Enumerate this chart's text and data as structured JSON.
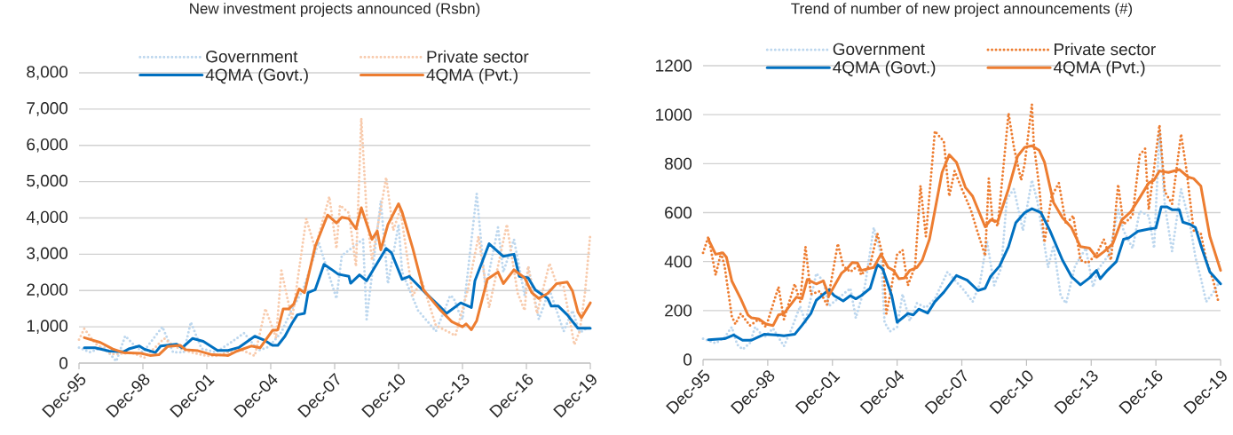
{
  "chart_data": [
    {
      "type": "line",
      "title": "New investment projects announced (Rsbn)",
      "xlim": [
        "1995-12",
        "2019-12"
      ],
      "xticks": [
        {
          "value": "1995-12",
          "label": "Dec-95"
        },
        {
          "value": "1998-12",
          "label": "Dec-98"
        },
        {
          "value": "2001-12",
          "label": "Dec-01"
        },
        {
          "value": "2004-12",
          "label": "Dec-04"
        },
        {
          "value": "2007-12",
          "label": "Dec-07"
        },
        {
          "value": "2010-12",
          "label": "Dec-10"
        },
        {
          "value": "2013-12",
          "label": "Dec-13"
        },
        {
          "value": "2016-12",
          "label": "Dec-16"
        },
        {
          "value": "2019-12",
          "label": "Dec-19"
        }
      ],
      "ylim": [
        0,
        8000
      ],
      "yticks": [
        0,
        {
          "value": 1000,
          "label": "1,000"
        },
        {
          "value": 2000,
          "label": "2,000"
        },
        {
          "value": 3000,
          "label": "3,000"
        },
        {
          "value": 4000,
          "label": "4,000"
        },
        {
          "value": 5000,
          "label": "5,000"
        },
        {
          "value": 6000,
          "label": "6,000"
        },
        {
          "value": 7000,
          "label": "7,000"
        },
        {
          "value": 8000,
          "label": "8,000"
        }
      ],
      "grid": "y",
      "legend": "top",
      "series": [
        {
          "name": "Government",
          "color": "#bdd7ee",
          "line_style": "dotted",
          "x": [
            "1995-12",
            "1996-06",
            "1997-02",
            "1997-09",
            "1998-02",
            "1998-07",
            "1998-12",
            "1999-11",
            "2000-05",
            "2000-11",
            "2001-03",
            "2001-09",
            "2002-05",
            "2003-01",
            "2003-09",
            "2004-05",
            "2004-11",
            "2005-06",
            "2005-12",
            "2006-06",
            "2007-03",
            "2008-01",
            "2008-04",
            "2009-04",
            "2009-06",
            "2010-02",
            "2010-06",
            "2010-12",
            "2011-02",
            "2011-11",
            "2012-09",
            "2013-03",
            "2013-05",
            "2013-07",
            "2013-10",
            "2013-12",
            "2014-08",
            "2015-01",
            "2015-08",
            "2015-11",
            "2016-05",
            "2016-11",
            "2017-01",
            "2017-07",
            "2018-01",
            "2018-09",
            "2019-02",
            "2019-06",
            "2019-10"
          ],
          "values": [
            430,
            300,
            450,
            50,
            750,
            500,
            300,
            1000,
            300,
            300,
            1130,
            400,
            300,
            550,
            830,
            350,
            450,
            850,
            1500,
            2000,
            3330,
            1780,
            2960,
            3410,
            1210,
            4470,
            2190,
            3820,
            2510,
            1450,
            880,
            1600,
            1860,
            1800,
            1400,
            1210,
            4670,
            2020,
            3740,
            2510,
            3410,
            1860,
            2670,
            1210,
            2020,
            880,
            1450,
            840,
            960
          ]
        },
        {
          "name": "Private sector",
          "color": "#f8cbad",
          "line_style": "dotted",
          "x": [
            "1995-12",
            "1996-03",
            "1996-09",
            "1997-06",
            "1998-06",
            "1999-01",
            "1999-12",
            "2000-06",
            "2001-03",
            "2001-12",
            "2002-06",
            "2003-06",
            "2004-03",
            "2004-09",
            "2005-03",
            "2005-06",
            "2005-12",
            "2006-03",
            "2006-08",
            "2007-01",
            "2007-09",
            "2008-01",
            "2008-03",
            "2008-08",
            "2008-12",
            "2009-03",
            "2009-06",
            "2009-09",
            "2010-05",
            "2010-09",
            "2011-01",
            "2011-08",
            "2012-01",
            "2012-09",
            "2013-08",
            "2014-03",
            "2014-09",
            "2015-03",
            "2016-01",
            "2016-07",
            "2016-11",
            "2017-01",
            "2017-06",
            "2018-01",
            "2018-05",
            "2018-09",
            "2019-03",
            "2019-06",
            "2019-09",
            "2019-12"
          ],
          "values": [
            650,
            950,
            550,
            250,
            280,
            150,
            680,
            450,
            300,
            200,
            200,
            400,
            200,
            1500,
            700,
            2550,
            1200,
            2250,
            3980,
            3160,
            4590,
            3160,
            4350,
            4140,
            2670,
            6750,
            4140,
            2840,
            5120,
            3660,
            4240,
            1860,
            2270,
            1040,
            760,
            2020,
            3490,
            1530,
            3820,
            1940,
            1450,
            2670,
            1370,
            2750,
            2190,
            2100,
            510,
            880,
            1940,
            3570
          ]
        },
        {
          "name": "4QMA (Govt.)",
          "color": "#0070c0",
          "line_style": "solid",
          "x": [
            "1996-03",
            "1996-09",
            "1997-05",
            "1998-01",
            "1998-04",
            "1998-10",
            "1999-01",
            "1999-07",
            "1999-10",
            "2000-07",
            "2000-10",
            "2001-04",
            "2001-10",
            "2002-06",
            "2002-12",
            "2003-06",
            "2004-03",
            "2004-08",
            "2005-01",
            "2005-04",
            "2005-08",
            "2005-12",
            "2006-03",
            "2006-07",
            "2006-09",
            "2007-01",
            "2007-06",
            "2007-10",
            "2008-02",
            "2008-08",
            "2008-09",
            "2009-02",
            "2009-06",
            "2010-05",
            "2010-08",
            "2011-02",
            "2011-06",
            "2012-03",
            "2012-11",
            "2013-03",
            "2013-11",
            "2014-05",
            "2014-07",
            "2015-03",
            "2015-11",
            "2016-05",
            "2016-08",
            "2017-01",
            "2017-05",
            "2017-12",
            "2018-02",
            "2018-06",
            "2018-11",
            "2019-05",
            "2019-12"
          ],
          "values": [
            420,
            420,
            330,
            310,
            390,
            470,
            380,
            290,
            470,
            520,
            420,
            680,
            600,
            350,
            350,
            430,
            740,
            640,
            490,
            490,
            740,
            1100,
            1330,
            1370,
            1940,
            2020,
            2720,
            2590,
            2450,
            2390,
            2200,
            2430,
            2270,
            3160,
            3040,
            2310,
            2390,
            1940,
            1570,
            1370,
            1660,
            1530,
            2270,
            3290,
            2940,
            3000,
            2390,
            2350,
            2020,
            1780,
            1570,
            1570,
            1330,
            960,
            960
          ]
        },
        {
          "name": "4QMA (Pvt.)",
          "color": "#ed7d31",
          "line_style": "solid",
          "x": [
            "1996-03",
            "1996-12",
            "1997-07",
            "1998-01",
            "1998-11",
            "1999-04",
            "1999-09",
            "2000-02",
            "2000-09",
            "2000-12",
            "2001-07",
            "2002-03",
            "2002-12",
            "2003-05",
            "2004-01",
            "2004-06",
            "2005-01",
            "2005-04",
            "2005-07",
            "2005-10",
            "2006-01",
            "2006-04",
            "2006-07",
            "2007-01",
            "2007-08",
            "2008-01",
            "2008-04",
            "2008-08",
            "2008-12",
            "2009-03",
            "2009-09",
            "2009-12",
            "2010-02",
            "2010-06",
            "2010-12",
            "2011-02",
            "2011-08",
            "2012-02",
            "2012-11",
            "2013-06",
            "2013-12",
            "2014-02",
            "2014-05",
            "2014-08",
            "2015-02",
            "2015-08",
            "2015-11",
            "2016-05",
            "2016-11",
            "2017-03",
            "2017-07",
            "2017-12",
            "2018-05",
            "2018-11",
            "2019-02",
            "2019-05",
            "2019-07",
            "2019-12"
          ],
          "values": [
            700,
            570,
            390,
            290,
            270,
            210,
            230,
            460,
            490,
            370,
            340,
            230,
            210,
            330,
            470,
            420,
            900,
            920,
            1490,
            1490,
            1630,
            2040,
            1940,
            3210,
            4080,
            3860,
            4020,
            3980,
            3700,
            4280,
            3410,
            3640,
            3120,
            3820,
            4390,
            4160,
            3160,
            2020,
            1490,
            1140,
            1000,
            1080,
            920,
            1170,
            2310,
            2510,
            2190,
            2570,
            2350,
            1940,
            1780,
            1920,
            2190,
            2230,
            1980,
            1410,
            1250,
            1660
          ]
        }
      ]
    },
    {
      "type": "line",
      "title": "Trend of number of new project announcements (#)",
      "xlim": [
        "1995-12",
        "2019-12"
      ],
      "xticks": [
        {
          "value": "1995-12",
          "label": "Dec-95"
        },
        {
          "value": "1998-12",
          "label": "Dec-98"
        },
        {
          "value": "2001-12",
          "label": "Dec-01"
        },
        {
          "value": "2004-12",
          "label": "Dec-04"
        },
        {
          "value": "2007-12",
          "label": "Dec-07"
        },
        {
          "value": "2010-12",
          "label": "Dec-10"
        },
        {
          "value": "2013-12",
          "label": "Dec-13"
        },
        {
          "value": "2016-12",
          "label": "Dec-16"
        },
        {
          "value": "2019-12",
          "label": "Dec-19"
        }
      ],
      "ylim": [
        0,
        1200
      ],
      "yticks": [
        0,
        200,
        400,
        600,
        800,
        1000,
        1200
      ],
      "grid": "y",
      "legend": "top",
      "series": [
        {
          "name": "Government",
          "color": "#bdd7ee",
          "line_style": "dotted",
          "x": [
            "1995-12",
            "1996-07",
            "1996-12",
            "1997-04",
            "1997-07",
            "1997-10",
            "1998-02",
            "1998-05",
            "1998-10",
            "1999-03",
            "1999-06",
            "1999-09",
            "2000-01",
            "2000-06",
            "2000-09",
            "2001-03",
            "2001-07",
            "2001-10",
            "2002-05",
            "2002-10",
            "2003-01",
            "2003-06",
            "2003-11",
            "2004-03",
            "2004-05",
            "2004-08",
            "2004-12",
            "2005-03",
            "2005-07",
            "2005-11",
            "2006-04",
            "2006-09",
            "2007-04",
            "2007-10",
            "2008-01",
            "2008-06",
            "2008-10",
            "2009-02",
            "2009-06",
            "2009-10",
            "2010-01",
            "2010-05",
            "2010-10",
            "2011-03",
            "2011-06",
            "2011-12",
            "2012-03",
            "2012-07",
            "2012-10",
            "2013-03",
            "2013-09",
            "2014-01",
            "2014-04",
            "2014-10",
            "2015-03",
            "2015-06",
            "2015-11",
            "2016-03",
            "2016-08",
            "2016-11",
            "2017-02",
            "2017-05",
            "2017-09",
            "2018-02",
            "2018-07",
            "2018-10",
            "2019-01",
            "2019-04",
            "2019-09",
            "2019-11"
          ],
          "values": [
            85,
            67,
            91,
            133,
            61,
            42,
            67,
            133,
            91,
            127,
            91,
            55,
            121,
            218,
            152,
            352,
            321,
            218,
            261,
            291,
            170,
            297,
            539,
            430,
            152,
            115,
            133,
            267,
            158,
            230,
            212,
            248,
            358,
            309,
            285,
            236,
            309,
            485,
            303,
            376,
            655,
            697,
            527,
            733,
            648,
            376,
            467,
            261,
            230,
            382,
            455,
            297,
            370,
            430,
            612,
            527,
            455,
            606,
            588,
            455,
            933,
            630,
            442,
            697,
            552,
            418,
            333,
            236,
            285,
            315
          ]
        },
        {
          "name": "Private sector",
          "color": "#ed7d31",
          "line_style": "dotted",
          "x": [
            "1995-12",
            "1996-03",
            "1996-07",
            "1996-10",
            "1996-12",
            "1997-04",
            "1997-06",
            "1997-09",
            "1998-02",
            "1998-07",
            "1998-11",
            "1999-06",
            "1999-09",
            "2000-03",
            "2000-06",
            "2000-09",
            "2000-12",
            "2001-05",
            "2001-09",
            "2002-03",
            "2002-06",
            "2002-10",
            "2003-02",
            "2003-04",
            "2003-09",
            "2004-01",
            "2004-04",
            "2004-06",
            "2004-08",
            "2004-12",
            "2005-03",
            "2005-06",
            "2005-10",
            "2006-01",
            "2006-04",
            "2006-09",
            "2007-02",
            "2007-05",
            "2007-08",
            "2007-12",
            "2008-05",
            "2008-08",
            "2009-01",
            "2009-03",
            "2009-05",
            "2009-08",
            "2010-02",
            "2010-05",
            "2010-09",
            "2010-11",
            "2011-03",
            "2011-04",
            "2011-07",
            "2011-10",
            "2012-02",
            "2012-06",
            "2012-10",
            "2013-02",
            "2013-06",
            "2013-10",
            "2014-03",
            "2014-07",
            "2014-11",
            "2015-03",
            "2015-06",
            "2015-11",
            "2016-03",
            "2016-06",
            "2016-08",
            "2016-11",
            "2017-02",
            "2017-05",
            "2017-09",
            "2018-02",
            "2018-05",
            "2018-09",
            "2019-01",
            "2019-04",
            "2019-08",
            "2019-11"
          ],
          "values": [
            436,
            503,
            345,
            436,
            382,
            176,
            145,
            188,
            139,
            164,
            133,
            297,
            164,
            309,
            236,
            461,
            267,
            279,
            224,
            473,
            382,
            358,
            382,
            345,
            388,
            515,
            424,
            188,
            261,
            430,
            448,
            303,
            382,
            710,
            503,
            933,
            891,
            667,
            770,
            697,
            612,
            539,
            424,
            739,
            576,
            545,
            1006,
            867,
            733,
            800,
            1042,
            885,
            709,
            479,
            667,
            721,
            552,
            588,
            406,
            394,
            430,
            491,
            406,
            715,
            552,
            588,
            836,
            861,
            612,
            782,
            958,
            685,
            636,
            921,
            776,
            527,
            515,
            406,
            321,
            230
          ]
        },
        {
          "name": "4QMA (Govt.)",
          "color": "#0070c0",
          "line_style": "solid",
          "x": [
            "1996-03",
            "1996-12",
            "1997-05",
            "1997-10",
            "1998-03",
            "1998-10",
            "1999-06",
            "1999-09",
            "2000-03",
            "2000-07",
            "2000-12",
            "2001-03",
            "2001-10",
            "2002-01",
            "2002-06",
            "2002-10",
            "2003-01",
            "2003-04",
            "2003-09",
            "2004-01",
            "2004-04",
            "2004-09",
            "2004-12",
            "2005-06",
            "2005-09",
            "2005-12",
            "2006-05",
            "2006-09",
            "2007-02",
            "2007-09",
            "2008-03",
            "2008-09",
            "2009-01",
            "2009-04",
            "2009-09",
            "2010-02",
            "2010-06",
            "2010-11",
            "2011-03",
            "2011-08",
            "2012-01",
            "2012-08",
            "2013-01",
            "2013-06",
            "2013-11",
            "2014-03",
            "2014-05",
            "2014-09",
            "2015-02",
            "2015-06",
            "2015-09",
            "2016-02",
            "2016-08",
            "2016-12",
            "2017-03",
            "2017-06",
            "2017-09",
            "2018-01",
            "2018-03",
            "2018-07",
            "2018-10",
            "2019-01",
            "2019-06",
            "2019-12"
          ],
          "values": [
            81,
            85,
            100,
            79,
            79,
            103,
            100,
            97,
            103,
            139,
            188,
            242,
            285,
            261,
            239,
            261,
            248,
            261,
            291,
            388,
            370,
            261,
            152,
            188,
            182,
            206,
            190,
            236,
            275,
            343,
            324,
            282,
            291,
            339,
            382,
            461,
            558,
            600,
            616,
            600,
            527,
            406,
            339,
            305,
            333,
            364,
            330,
            364,
            400,
            491,
            497,
            524,
            533,
            537,
            624,
            624,
            612,
            612,
            561,
            552,
            539,
            467,
            358,
            309
          ]
        },
        {
          "name": "4QMA (Pvt.)",
          "color": "#ed7d31",
          "line_style": "solid",
          "x": [
            "1996-03",
            "1996-07",
            "1996-11",
            "1997-01",
            "1997-04",
            "1997-09",
            "1998-01",
            "1998-03",
            "1998-07",
            "1998-11",
            "1999-03",
            "1999-06",
            "1999-09",
            "2000-04",
            "2000-07",
            "2000-10",
            "2001-03",
            "2001-07",
            "2001-10",
            "2002-05",
            "2002-08",
            "2002-11",
            "2003-02",
            "2003-04",
            "2003-11",
            "2004-03",
            "2004-07",
            "2004-10",
            "2005-01",
            "2005-04",
            "2005-07",
            "2005-11",
            "2006-02",
            "2006-06",
            "2007-01",
            "2007-05",
            "2007-09",
            "2008-02",
            "2008-06",
            "2009-01",
            "2009-04",
            "2009-08",
            "2010-02",
            "2010-07",
            "2010-11",
            "2011-03",
            "2011-07",
            "2011-10",
            "2012-03",
            "2012-08",
            "2013-01",
            "2013-06",
            "2013-11",
            "2014-03",
            "2014-07",
            "2014-12",
            "2015-05",
            "2015-10",
            "2016-03",
            "2016-08",
            "2016-11",
            "2017-02",
            "2017-07",
            "2018-01",
            "2018-06",
            "2018-09",
            "2019-01",
            "2019-06",
            "2019-12"
          ],
          "values": [
            491,
            430,
            436,
            418,
            321,
            248,
            182,
            170,
            166,
            145,
            139,
            182,
            188,
            255,
            248,
            327,
            309,
            321,
            261,
            352,
            370,
            396,
            394,
            364,
            376,
            430,
            376,
            364,
            330,
            333,
            364,
            376,
            406,
            491,
            764,
            836,
            806,
            703,
            667,
            542,
            570,
            564,
            697,
            830,
            867,
            873,
            855,
            806,
            642,
            579,
            539,
            461,
            455,
            418,
            440,
            473,
            570,
            603,
            661,
            721,
            733,
            770,
            764,
            776,
            745,
            739,
            709,
            503,
            364
          ]
        }
      ]
    }
  ]
}
